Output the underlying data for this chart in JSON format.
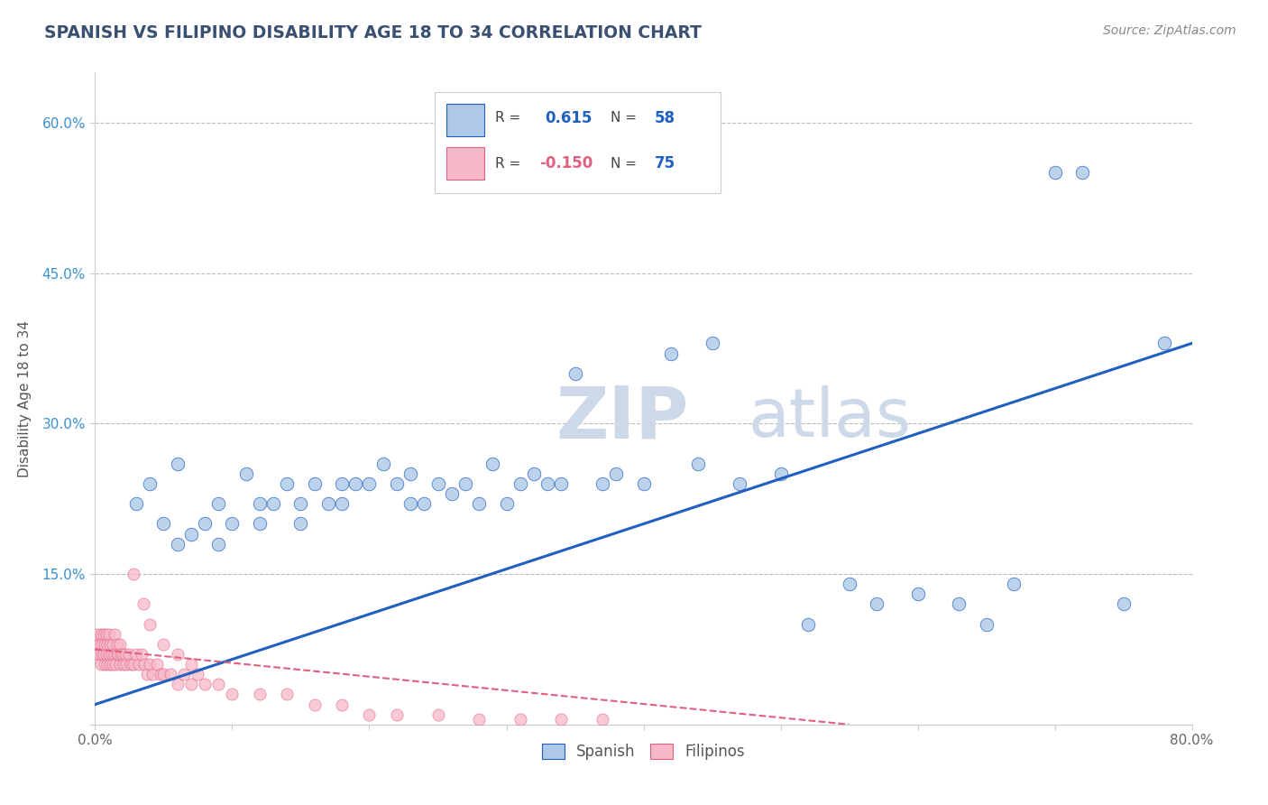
{
  "title": "SPANISH VS FILIPINO DISABILITY AGE 18 TO 34 CORRELATION CHART",
  "source": "Source: ZipAtlas.com",
  "ylabel": "Disability Age 18 to 34",
  "xlim": [
    0.0,
    0.8
  ],
  "ylim": [
    0.0,
    0.65
  ],
  "xticks": [
    0.0,
    0.1,
    0.2,
    0.3,
    0.4,
    0.5,
    0.6,
    0.7,
    0.8
  ],
  "xticklabels": [
    "0.0%",
    "",
    "",
    "",
    "",
    "",
    "",
    "",
    "80.0%"
  ],
  "yticks": [
    0.0,
    0.15,
    0.3,
    0.45,
    0.6
  ],
  "yticklabels": [
    "",
    "15.0%",
    "30.0%",
    "45.0%",
    "60.0%"
  ],
  "spanish_R": 0.615,
  "spanish_N": 58,
  "filipino_R": -0.15,
  "filipino_N": 75,
  "spanish_color": "#adc8e8",
  "filipino_color": "#f7b8c8",
  "spanish_line_color": "#2060c0",
  "filipino_line_color": "#e06080",
  "watermark": "ZIPatlas",
  "watermark_color": "#cdd8e8",
  "background_color": "#ffffff",
  "grid_color": "#bbbbbb",
  "title_color": "#3a5070",
  "axis_tick_color_y": "#3a90d0",
  "axis_tick_color_x": "#666666",
  "spanish_x": [
    0.03,
    0.04,
    0.05,
    0.06,
    0.06,
    0.07,
    0.08,
    0.09,
    0.09,
    0.1,
    0.11,
    0.12,
    0.12,
    0.13,
    0.14,
    0.15,
    0.15,
    0.16,
    0.17,
    0.18,
    0.18,
    0.19,
    0.2,
    0.21,
    0.22,
    0.23,
    0.23,
    0.24,
    0.25,
    0.26,
    0.27,
    0.28,
    0.29,
    0.3,
    0.31,
    0.32,
    0.33,
    0.34,
    0.35,
    0.37,
    0.38,
    0.4,
    0.42,
    0.44,
    0.45,
    0.47,
    0.5,
    0.52,
    0.55,
    0.57,
    0.6,
    0.63,
    0.65,
    0.67,
    0.7,
    0.72,
    0.75,
    0.78
  ],
  "spanish_y": [
    0.22,
    0.24,
    0.2,
    0.18,
    0.26,
    0.19,
    0.2,
    0.22,
    0.18,
    0.2,
    0.25,
    0.22,
    0.2,
    0.22,
    0.24,
    0.22,
    0.2,
    0.24,
    0.22,
    0.24,
    0.22,
    0.24,
    0.24,
    0.26,
    0.24,
    0.25,
    0.22,
    0.22,
    0.24,
    0.23,
    0.24,
    0.22,
    0.26,
    0.22,
    0.24,
    0.25,
    0.24,
    0.24,
    0.35,
    0.24,
    0.25,
    0.24,
    0.37,
    0.26,
    0.38,
    0.24,
    0.25,
    0.1,
    0.14,
    0.12,
    0.13,
    0.12,
    0.1,
    0.14,
    0.55,
    0.55,
    0.12,
    0.38
  ],
  "filipino_x": [
    0.001,
    0.002,
    0.002,
    0.003,
    0.003,
    0.004,
    0.004,
    0.005,
    0.005,
    0.006,
    0.006,
    0.007,
    0.007,
    0.008,
    0.008,
    0.009,
    0.009,
    0.01,
    0.01,
    0.011,
    0.011,
    0.012,
    0.013,
    0.013,
    0.014,
    0.014,
    0.015,
    0.016,
    0.016,
    0.017,
    0.018,
    0.018,
    0.019,
    0.02,
    0.021,
    0.022,
    0.023,
    0.025,
    0.026,
    0.028,
    0.03,
    0.032,
    0.034,
    0.036,
    0.038,
    0.04,
    0.042,
    0.045,
    0.048,
    0.05,
    0.055,
    0.06,
    0.065,
    0.07,
    0.075,
    0.08,
    0.09,
    0.1,
    0.12,
    0.14,
    0.16,
    0.18,
    0.2,
    0.22,
    0.25,
    0.28,
    0.31,
    0.34,
    0.37,
    0.028,
    0.035,
    0.04,
    0.05,
    0.06,
    0.07
  ],
  "filipino_y": [
    0.08,
    0.07,
    0.09,
    0.07,
    0.08,
    0.06,
    0.09,
    0.07,
    0.08,
    0.07,
    0.09,
    0.06,
    0.08,
    0.07,
    0.09,
    0.06,
    0.08,
    0.07,
    0.09,
    0.06,
    0.08,
    0.07,
    0.08,
    0.06,
    0.07,
    0.09,
    0.06,
    0.07,
    0.08,
    0.07,
    0.06,
    0.08,
    0.07,
    0.07,
    0.06,
    0.07,
    0.06,
    0.07,
    0.06,
    0.06,
    0.07,
    0.06,
    0.07,
    0.06,
    0.05,
    0.06,
    0.05,
    0.06,
    0.05,
    0.05,
    0.05,
    0.04,
    0.05,
    0.04,
    0.05,
    0.04,
    0.04,
    0.03,
    0.03,
    0.03,
    0.02,
    0.02,
    0.01,
    0.01,
    0.01,
    0.005,
    0.005,
    0.005,
    0.005,
    0.15,
    0.12,
    0.1,
    0.08,
    0.07,
    0.06
  ],
  "sp_line_x0": 0.0,
  "sp_line_y0": 0.02,
  "sp_line_x1": 0.8,
  "sp_line_y1": 0.38,
  "fi_line_x0": 0.0,
  "fi_line_y0": 0.075,
  "fi_line_x1": 0.55,
  "fi_line_y1": 0.0
}
